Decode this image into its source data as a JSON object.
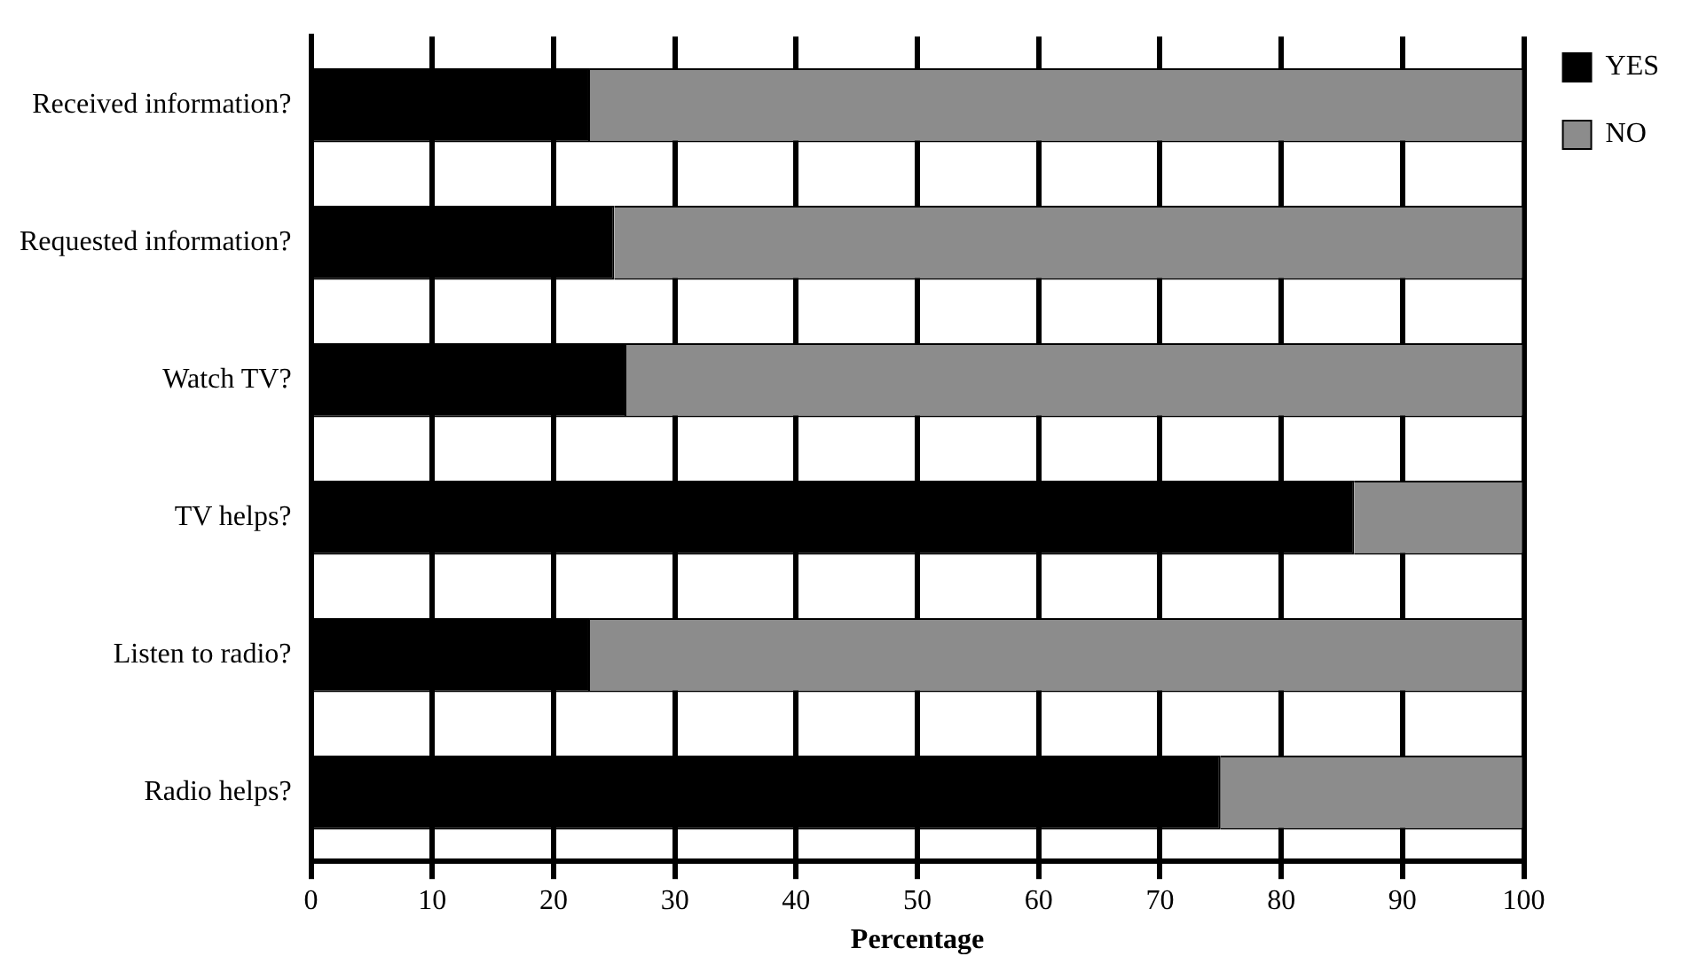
{
  "chart_data": {
    "type": "bar",
    "orientation": "horizontal",
    "stacked": true,
    "xlabel": "Percentage",
    "categories": [
      "Received information?",
      "Requested information?",
      "Watch TV?",
      "TV helps?",
      "Listen to radio?",
      "Radio helps?"
    ],
    "series": [
      {
        "name": "YES",
        "color": "#000000",
        "values": [
          23,
          25,
          26,
          86,
          23,
          75
        ]
      },
      {
        "name": "NO",
        "color": "#8c8c8c",
        "values": [
          77,
          75,
          74,
          14,
          77,
          25
        ]
      }
    ],
    "xlim": [
      0,
      100
    ],
    "xticks": [
      0,
      10,
      20,
      30,
      40,
      50,
      60,
      70,
      80,
      90,
      100
    ],
    "grid": "x",
    "legend": "top right"
  }
}
